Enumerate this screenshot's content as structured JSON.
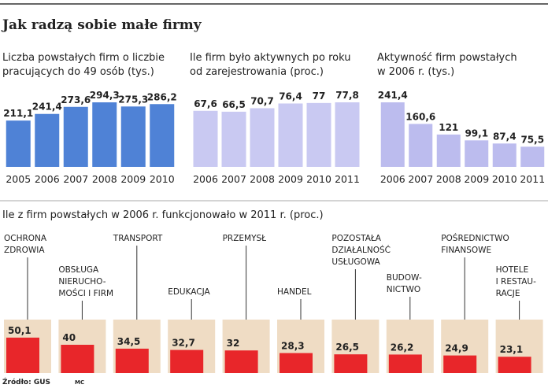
{
  "title": "Jak radzą sobie małe firmy",
  "source": "Źródło: GUS",
  "credit": "MC",
  "chart_data": [
    {
      "type": "bar",
      "subtitle": [
        "Liczba powstałych firm o liczbie",
        "pracujących do 49 osób (tys.)"
      ],
      "categories": [
        "2005",
        "2006",
        "2007",
        "2008",
        "2009",
        "2010"
      ],
      "values": [
        211.1,
        241.4,
        273.6,
        294.3,
        275.3,
        286.2
      ],
      "value_labels": [
        "211,1",
        "241,4",
        "273,6",
        "294,3",
        "275,3",
        "286,2"
      ],
      "color": "#4f82d6"
    },
    {
      "type": "bar",
      "subtitle": [
        "Ile firm było aktywnych po roku",
        "od zarejestrowania (proc.)"
      ],
      "categories": [
        "2006",
        "2007",
        "2008",
        "2009",
        "2010",
        "2011"
      ],
      "values": [
        67.6,
        66.5,
        70.7,
        76.4,
        77,
        77.8
      ],
      "value_labels": [
        "67,6",
        "66,5",
        "70,7",
        "76,4",
        "77",
        "77,8"
      ],
      "color": "#c9c9f2"
    },
    {
      "type": "bar",
      "subtitle": [
        "Aktywność firm powstałych",
        "w 2006 r. (tys.)"
      ],
      "categories": [
        "2006",
        "2007",
        "2008",
        "2009",
        "2010",
        "2011"
      ],
      "values": [
        241.4,
        160.6,
        121,
        99.1,
        87.4,
        75.5
      ],
      "value_labels": [
        "241,4",
        "160,6",
        "121",
        "99,1",
        "87,4",
        "75,5"
      ],
      "color": "#bcbcee"
    },
    {
      "type": "box",
      "subtitle": [
        "Ile z firm powstałych w 2006 r. funkcjonowało w 2011 r. (proc.)"
      ],
      "categories": [
        [
          "OCHRONA",
          "ZDROWIA"
        ],
        [
          "OBSŁUGA",
          "NIERUCHO-",
          "MOŚCI I FIRM"
        ],
        [
          "TRANSPORT"
        ],
        [
          "EDUKACJA"
        ],
        [
          "PRZEMYSŁ"
        ],
        [
          "HANDEL"
        ],
        [
          "POZOSTAŁA",
          "DZIAŁALNOŚĆ",
          "USŁUGOWA"
        ],
        [
          "BUDOW-",
          "NICTWO"
        ],
        [
          "POŚREDNICTWO",
          "FINANSOWE"
        ],
        [
          "HOTELE",
          "I RESTAU-",
          "RACJE"
        ]
      ],
      "values": [
        50.1,
        40,
        34.5,
        32.7,
        32,
        28.3,
        26.5,
        26.2,
        24.9,
        23.1
      ],
      "value_labels": [
        "50,1",
        "40",
        "34,5",
        "32,7",
        "32",
        "28,3",
        "26,5",
        "26,2",
        "24,9",
        "23,1"
      ],
      "color": "#e8262a",
      "box_color": "#efdcc4"
    }
  ]
}
